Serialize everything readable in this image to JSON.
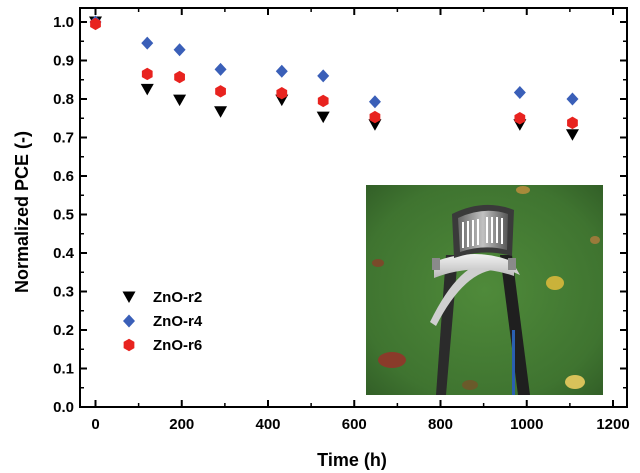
{
  "chart_data": {
    "type": "scatter",
    "xlabel": "Time (h)",
    "ylabel": "Normalized PCE (-)",
    "xlim": [
      0,
      1200
    ],
    "ylim": [
      0.0,
      1.0
    ],
    "xticks": [
      "0",
      "200",
      "400",
      "600",
      "800",
      "1000",
      "1200"
    ],
    "yticks": [
      "0.0",
      "0.1",
      "0.2",
      "0.3",
      "0.4",
      "0.5",
      "0.6",
      "0.7",
      "0.8",
      "0.9",
      "1.0"
    ],
    "grid": false,
    "legend_position": "bottom-left",
    "series": [
      {
        "name": "ZnO-r2",
        "marker": "triangle-down",
        "color": "#000000",
        "x": [
          0,
          120,
          195,
          290,
          432,
          528,
          648,
          984,
          1106
        ],
        "y": [
          1.0,
          0.825,
          0.797,
          0.767,
          0.797,
          0.753,
          0.733,
          0.733,
          0.707
        ]
      },
      {
        "name": "ZnO-r4",
        "marker": "diamond",
        "color": "#3a5fb8",
        "x": [
          0,
          120,
          195,
          290,
          432,
          528,
          648,
          984,
          1106
        ],
        "y": [
          1.0,
          0.945,
          0.928,
          0.877,
          0.872,
          0.86,
          0.793,
          0.817,
          0.8
        ]
      },
      {
        "name": "ZnO-r6",
        "marker": "hexagon",
        "color": "#e8231f",
        "x": [
          0,
          120,
          195,
          290,
          432,
          528,
          648,
          984,
          1106
        ],
        "y": [
          0.995,
          0.865,
          0.857,
          0.82,
          0.815,
          0.795,
          0.753,
          0.75,
          0.738
        ]
      }
    ],
    "inset": {
      "type": "photo",
      "icon": "flexible-solar-cell-photo"
    }
  }
}
